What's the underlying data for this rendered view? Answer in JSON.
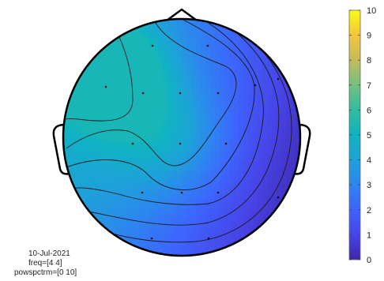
{
  "chart_data": {
    "type": "heatmap",
    "subtype": "eeg-topoplot",
    "title": "",
    "colormap": "parula",
    "colorbar": {
      "range": [
        0,
        10
      ],
      "ticks": [
        "0",
        "1",
        "2",
        "3",
        "4",
        "5",
        "6",
        "7",
        "8",
        "9",
        "10"
      ]
    },
    "info_lines": [
      "10-Jul-2021",
      "freq=[4 4]",
      "powspctrm=[0 10]"
    ],
    "electrodes_visible": true,
    "contour_lines_visible": true,
    "field_description_values": {
      "max_region": "left-frontal",
      "max_value": 5.3,
      "min_region": "right",
      "min_value": 0.2
    }
  }
}
